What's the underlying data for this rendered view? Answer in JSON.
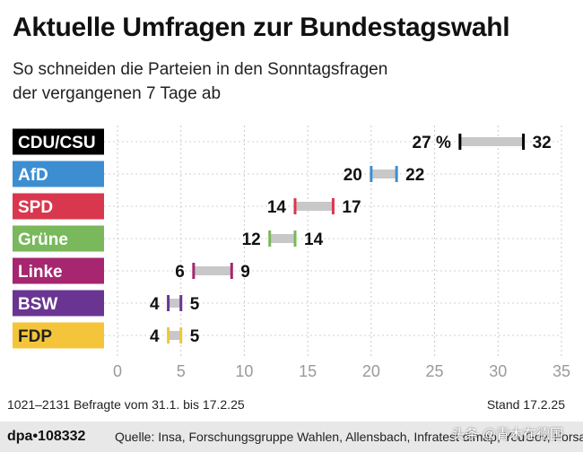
{
  "title": "Aktuelle Umfragen zur Bundestagswahl",
  "subtitle_line1": "So schneiden die Parteien in den Sonntagsfragen",
  "subtitle_line2": "der vergangenen 7 Tage ab",
  "footer": {
    "respondents": "1021–2131 Befragte vom 31.1. bis 17.2.25",
    "date": "Stand 17.2.25",
    "logo": "dpa•108332",
    "source": "Quelle: Insa, Forschungsgruppe Wahlen, Allensbach, Infratest dimap, YouGov, Forsa",
    "watermark": "头条 @青木在德国"
  },
  "chart_data": {
    "type": "range-bar",
    "xlim": [
      0,
      35
    ],
    "xticks": [
      0,
      5,
      10,
      15,
      20,
      25,
      30,
      35
    ],
    "grid": true,
    "series": [
      {
        "name": "CDU/CSU",
        "min": 27,
        "max": 32,
        "min_label": "27 %",
        "max_label": "32",
        "color": "#000000",
        "label_text_color": "#ffffff"
      },
      {
        "name": "AfD",
        "min": 20,
        "max": 22,
        "min_label": "20",
        "max_label": "22",
        "color": "#3d8ed1",
        "label_text_color": "#ffffff"
      },
      {
        "name": "SPD",
        "min": 14,
        "max": 17,
        "min_label": "14",
        "max_label": "17",
        "color": "#d9374e",
        "label_text_color": "#ffffff"
      },
      {
        "name": "Grüne",
        "min": 12,
        "max": 14,
        "min_label": "12",
        "max_label": "14",
        "color": "#79b85b",
        "label_text_color": "#ffffff"
      },
      {
        "name": "Linke",
        "min": 6,
        "max": 9,
        "min_label": "6",
        "max_label": "9",
        "color": "#a6266f",
        "label_text_color": "#ffffff"
      },
      {
        "name": "BSW",
        "min": 4,
        "max": 5,
        "min_label": "4",
        "max_label": "5",
        "color": "#6a3592",
        "label_text_color": "#ffffff"
      },
      {
        "name": "FDP",
        "min": 4,
        "max": 5,
        "min_label": "4",
        "max_label": "5",
        "color": "#f4c53a",
        "label_text_color": "#222222"
      }
    ],
    "range_color": "#c8c8c8"
  }
}
